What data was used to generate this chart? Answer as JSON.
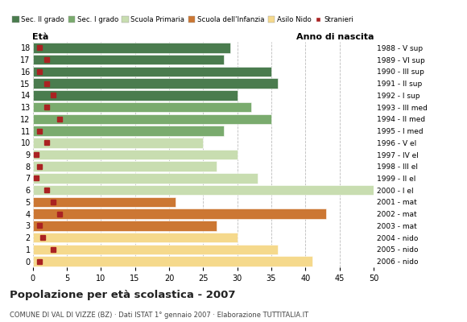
{
  "ages": [
    18,
    17,
    16,
    15,
    14,
    13,
    12,
    11,
    10,
    9,
    8,
    7,
    6,
    5,
    4,
    3,
    2,
    1,
    0
  ],
  "bar_values": [
    29,
    28,
    35,
    36,
    30,
    32,
    35,
    28,
    25,
    30,
    27,
    33,
    50,
    21,
    43,
    27,
    30,
    36,
    41
  ],
  "stranieri": [
    1,
    2,
    1,
    2,
    3,
    2,
    4,
    1,
    2,
    0.5,
    1,
    0.5,
    2,
    3,
    4,
    1,
    1.5,
    3,
    1
  ],
  "right_labels": [
    "1988 - V sup",
    "1989 - VI sup",
    "1990 - III sup",
    "1991 - II sup",
    "1992 - I sup",
    "1993 - III med",
    "1994 - II med",
    "1995 - I med",
    "1996 - V el",
    "1997 - IV el",
    "1998 - III el",
    "1999 - II el",
    "2000 - I el",
    "2001 - mat",
    "2002 - mat",
    "2003 - mat",
    "2004 - nido",
    "2005 - nido",
    "2006 - nido"
  ],
  "bar_colors": [
    "#4a7c4e",
    "#4a7c4e",
    "#4a7c4e",
    "#4a7c4e",
    "#4a7c4e",
    "#7aab6e",
    "#7aab6e",
    "#7aab6e",
    "#c8ddb0",
    "#c8ddb0",
    "#c8ddb0",
    "#c8ddb0",
    "#c8ddb0",
    "#cc7733",
    "#cc7733",
    "#cc7733",
    "#f5d98c",
    "#f5d98c",
    "#f5d98c"
  ],
  "legend_labels": [
    "Sec. II grado",
    "Sec. I grado",
    "Scuola Primaria",
    "Scuola dell'Infanzia",
    "Asilo Nido",
    "Stranieri"
  ],
  "legend_colors": [
    "#4a7c4e",
    "#7aab6e",
    "#c8ddb0",
    "#cc7733",
    "#f5d98c",
    "#aa2222"
  ],
  "title": "Popolazione per età scolastica - 2007",
  "subtitle": "COMUNE DI VAL DI VIZZE (BZ) · Dati ISTAT 1° gennaio 2007 · Elaborazione TUTTITALIA.IT",
  "xlabel_eta": "Età",
  "xlabel_anno": "Anno di nascita",
  "xlim": [
    0,
    50
  ],
  "background_color": "#ffffff",
  "grid_color": "#bbbbbb"
}
